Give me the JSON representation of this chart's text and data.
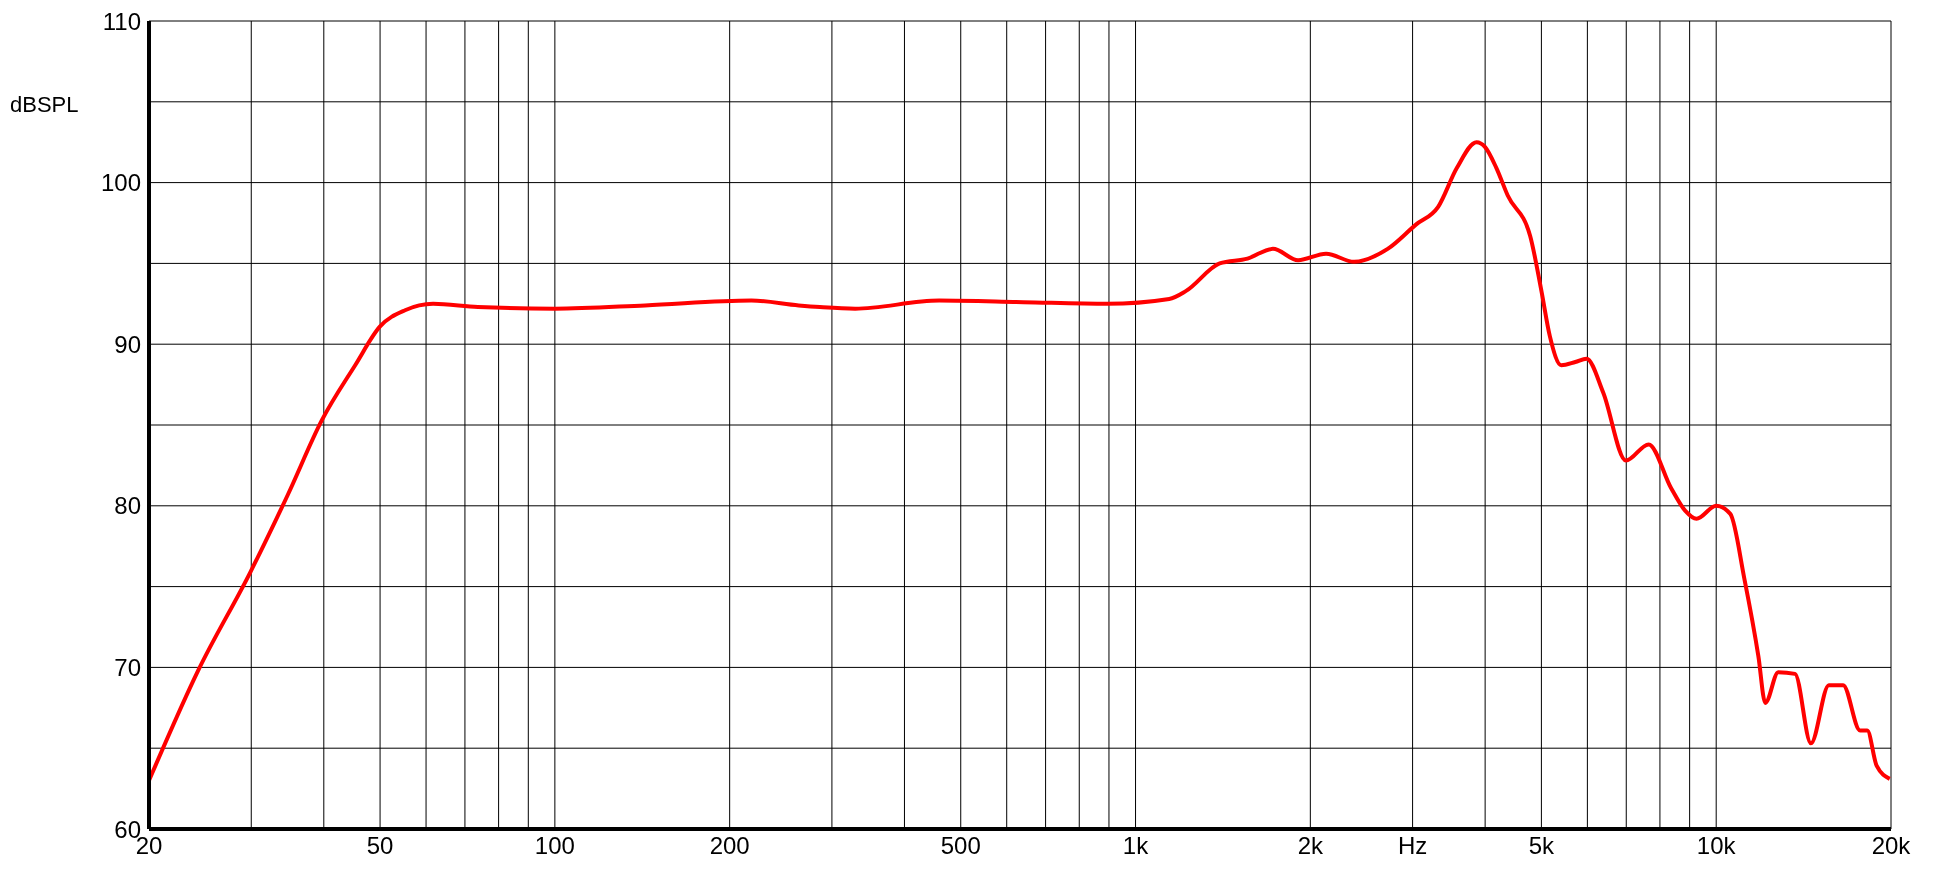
{
  "chart_data": {
    "type": "line",
    "ylabel": "dBSPL",
    "log": "x",
    "grid": true,
    "legend": false,
    "marker": "none",
    "line_style": "solid",
    "xlim": [
      20,
      20000
    ],
    "ylim": [
      60,
      110
    ],
    "xticks": [
      20,
      {
        "value": 30,
        "label": null
      },
      {
        "value": 40,
        "label": null
      },
      50,
      {
        "value": 60,
        "label": null
      },
      {
        "value": 70,
        "label": null
      },
      {
        "value": 80,
        "label": null
      },
      {
        "value": 90,
        "label": null
      },
      100,
      200,
      {
        "value": 300,
        "label": null
      },
      {
        "value": 400,
        "label": null
      },
      500,
      {
        "value": 600,
        "label": null
      },
      {
        "value": 700,
        "label": null
      },
      {
        "value": 800,
        "label": null
      },
      {
        "value": 900,
        "label": null
      },
      {
        "value": 1000,
        "label": "1k"
      },
      {
        "value": 2000,
        "label": "2k"
      },
      {
        "value": 3000,
        "label": "Hz"
      },
      {
        "value": 4000,
        "label": null
      },
      {
        "value": 5000,
        "label": "5k"
      },
      {
        "value": 6000,
        "label": null
      },
      {
        "value": 7000,
        "label": null
      },
      {
        "value": 8000,
        "label": null
      },
      {
        "value": 9000,
        "label": null
      },
      {
        "value": 10000,
        "label": "10k"
      },
      {
        "value": 20000,
        "label": "20k"
      }
    ],
    "yticks": [
      60,
      {
        "value": 65,
        "label": null
      },
      70,
      {
        "value": 75,
        "label": null
      },
      80,
      {
        "value": 85,
        "label": null
      },
      90,
      {
        "value": 95,
        "label": null
      },
      100,
      {
        "value": 105,
        "label": null
      },
      110
    ],
    "x": [
      20,
      24.3,
      29.9,
      34.7,
      39.7,
      45.3,
      50,
      55.2,
      61.7,
      73.7,
      100,
      143,
      218,
      263,
      286,
      329,
      459,
      641,
      895,
      1143,
      1222,
      1396,
      1559,
      1724,
      1905,
      2129,
      2379,
      2718,
      3040,
      3320,
      3575,
      3866,
      4000,
      4183,
      4375,
      4782,
      5000,
      5170,
      5410,
      5720,
      5980,
      6390,
      6990,
      7650,
      8360,
      8840,
      9250,
      10000,
      10575,
      11180,
      11820,
      12150,
      12790,
      13670,
      14560,
      15630,
      16540,
      17690,
      18200,
      18900,
      19900
    ],
    "series": [
      {
        "color": "#ff0000",
        "values": [
          63.0,
          69.8,
          75.9,
          80.7,
          85.3,
          88.7,
          91.1,
          92.1,
          92.5,
          92.3,
          92.2,
          92.4,
          92.7,
          92.4,
          92.3,
          92.2,
          92.7,
          92.6,
          92.5,
          92.8,
          93.3,
          95.0,
          95.3,
          95.9,
          95.2,
          95.6,
          95.1,
          95.9,
          97.4,
          98.5,
          100.9,
          102.5,
          102.2,
          100.9,
          99.2,
          96.7,
          93.3,
          90.5,
          88.7,
          88.9,
          89.1,
          87.0,
          82.8,
          83.8,
          81.1,
          79.7,
          79.2,
          80.0,
          79.5,
          75.5,
          70.7,
          67.8,
          69.7,
          69.6,
          65.3,
          68.9,
          68.9,
          66.1,
          66.1,
          63.9,
          63.1
        ]
      }
    ]
  }
}
